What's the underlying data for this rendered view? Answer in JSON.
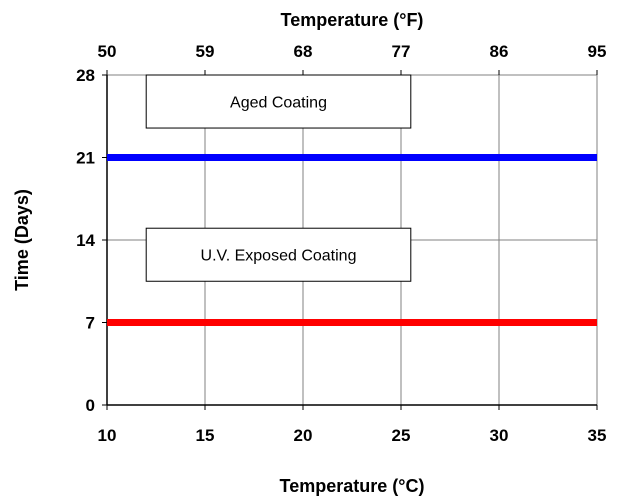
{
  "chart_data": {
    "type": "line",
    "xlabel": "Temperature (°C)",
    "x2label": "Temperature (°F)",
    "ylabel": "Time (Days)",
    "xlim": [
      10,
      35
    ],
    "ylim": [
      0,
      28
    ],
    "x_ticks": [
      "10",
      "15",
      "20",
      "25",
      "30",
      "35"
    ],
    "x2_ticks": [
      "50",
      "59",
      "68",
      "77",
      "86",
      "95"
    ],
    "y_ticks": [
      "0",
      "7",
      "14",
      "21",
      "28"
    ],
    "grid": true,
    "series": [
      {
        "x": [
          10,
          35
        ],
        "y": [
          21,
          21
        ],
        "color": "#0000ff"
      },
      {
        "x": [
          10,
          35
        ],
        "y": [
          7,
          7
        ],
        "color": "#ff0000"
      }
    ],
    "annotations": [
      {
        "text": "Aged Coating",
        "x": [
          12,
          25.5
        ],
        "y": [
          23.5,
          28
        ]
      },
      {
        "text": "U.V. Exposed Coating",
        "x": [
          12,
          25.5
        ],
        "y": [
          10.5,
          15
        ]
      }
    ]
  }
}
